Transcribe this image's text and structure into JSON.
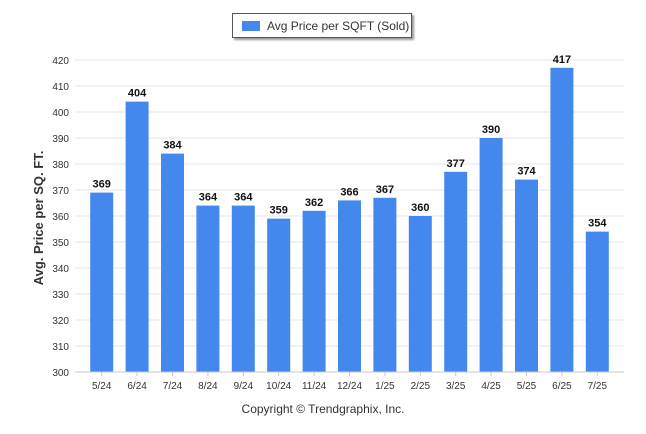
{
  "chart_data": {
    "type": "bar",
    "title": "",
    "xlabel": "",
    "ylabel": "Avg. Price per SQ. FT.",
    "categories": [
      "5/24",
      "6/24",
      "7/24",
      "8/24",
      "9/24",
      "10/24",
      "11/24",
      "12/24",
      "1/25",
      "2/25",
      "3/25",
      "4/25",
      "5/25",
      "6/25",
      "7/25"
    ],
    "series": [
      {
        "name": "Avg Price per SQFT (Sold)",
        "values": [
          369,
          404,
          384,
          364,
          364,
          359,
          362,
          366,
          367,
          360,
          377,
          390,
          374,
          417,
          354
        ]
      }
    ],
    "ylim": [
      300,
      420
    ],
    "yticks": [
      300,
      310,
      320,
      330,
      340,
      350,
      360,
      370,
      380,
      390,
      400,
      410,
      420
    ],
    "grid": true,
    "legend_position": "top-center",
    "data_labels": true,
    "bar_color": "#4488ee"
  },
  "footer": {
    "copyright": "Copyright © Trendgraphix, Inc."
  }
}
